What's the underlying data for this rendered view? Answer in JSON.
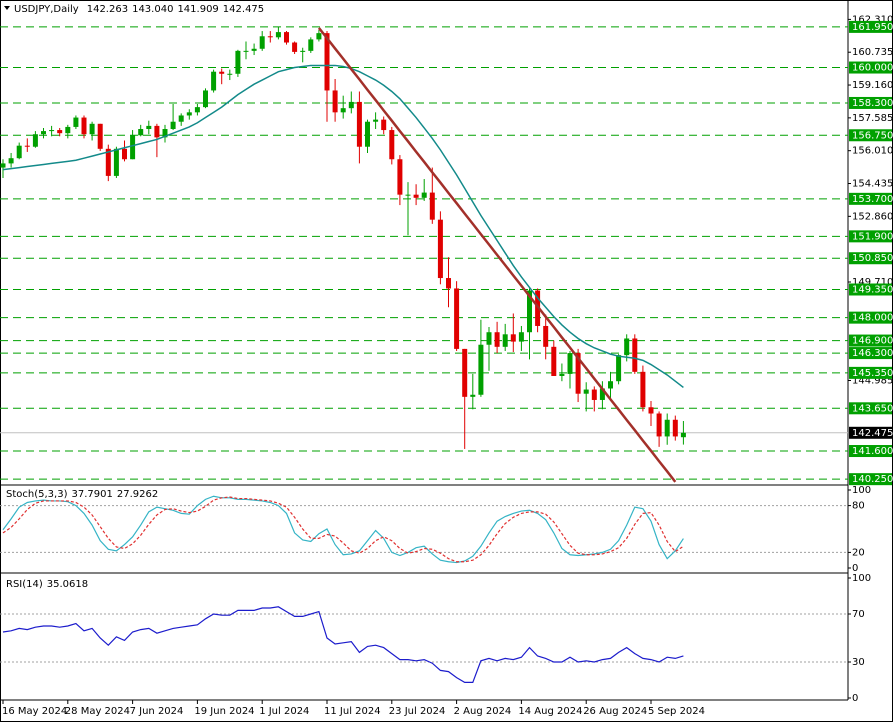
{
  "chart_data": [
    {
      "type": "candlestick",
      "title": "USDJPY,Daily",
      "quote_labels": [
        "142.263",
        "143.040",
        "141.909",
        "142.475"
      ],
      "categories": [
        "16 May 2024",
        null,
        null,
        null,
        null,
        null,
        null,
        null,
        "28 May 2024",
        null,
        null,
        null,
        null,
        null,
        null,
        null,
        "7 Jun 2024",
        null,
        null,
        null,
        null,
        null,
        null,
        null,
        "19 Jun 2024",
        null,
        null,
        null,
        null,
        null,
        null,
        null,
        "1 Jul 2024",
        null,
        null,
        null,
        null,
        null,
        null,
        null,
        "11 Jul 2024",
        null,
        null,
        null,
        null,
        null,
        null,
        null,
        "23 Jul 2024",
        null,
        null,
        null,
        null,
        null,
        null,
        null,
        "2 Aug 2024",
        null,
        null,
        null,
        null,
        null,
        null,
        null,
        "14 Aug 2024",
        null,
        null,
        null,
        null,
        null,
        null,
        null,
        "26 Aug 2024",
        null,
        null,
        null,
        null,
        null,
        null,
        null,
        "5 Sep 2024",
        null,
        null,
        null,
        null
      ],
      "open": [
        155.2,
        155.4,
        155.65,
        156.25,
        156.2,
        156.8,
        156.95,
        157.0,
        156.85,
        157.15,
        157.6,
        156.8,
        157.3,
        156.1,
        154.8,
        156.1,
        155.6,
        156.75,
        157.05,
        157.2,
        156.65,
        157.05,
        157.4,
        157.7,
        157.85,
        158.1,
        158.9,
        159.8,
        159.7,
        159.7,
        160.8,
        160.8,
        160.9,
        161.5,
        161.45,
        161.7,
        161.2,
        160.75,
        160.8,
        161.35,
        161.65,
        158.9,
        157.85,
        158.05,
        158.35,
        156.2,
        157.4,
        157.5,
        157.0,
        155.6,
        153.9,
        153.9,
        153.75,
        154.0,
        152.7,
        149.9,
        149.4,
        146.5,
        144.2,
        144.3,
        146.7,
        147.3,
        146.6,
        147.2,
        146.85,
        147.3,
        149.3,
        147.6,
        146.6,
        145.2,
        145.3,
        146.3,
        144.35,
        144.55,
        144.05,
        144.6,
        144.95,
        146.2,
        147.0,
        145.4,
        143.7,
        143.4,
        142.3,
        143.1,
        142.263
      ],
      "high": [
        155.6,
        155.9,
        156.4,
        156.6,
        156.95,
        157.1,
        157.2,
        157.1,
        157.25,
        157.7,
        157.7,
        157.4,
        157.3,
        156.3,
        156.2,
        156.5,
        157.0,
        157.25,
        157.45,
        157.3,
        157.25,
        158.25,
        157.8,
        158.0,
        158.25,
        159.0,
        159.9,
        159.95,
        159.9,
        160.85,
        161.25,
        161.15,
        161.75,
        161.75,
        161.95,
        161.75,
        161.25,
        160.95,
        161.45,
        161.8,
        161.75,
        159.45,
        158.65,
        158.85,
        158.85,
        157.5,
        157.85,
        157.65,
        157.15,
        155.8,
        154.5,
        154.4,
        154.65,
        155.2,
        153.1,
        150.9,
        149.75,
        146.5,
        145.3,
        147.9,
        147.55,
        147.8,
        147.7,
        148.2,
        147.6,
        149.4,
        149.4,
        148.15,
        146.9,
        145.8,
        146.4,
        146.5,
        144.9,
        144.7,
        144.95,
        145.4,
        146.25,
        147.2,
        147.2,
        145.7,
        144.0,
        143.5,
        143.4,
        143.3,
        143.04
      ],
      "low": [
        154.7,
        155.2,
        155.6,
        155.95,
        156.15,
        156.6,
        156.7,
        156.7,
        156.6,
        157.05,
        156.6,
        156.5,
        156.0,
        154.55,
        154.7,
        155.5,
        155.6,
        156.7,
        156.8,
        155.7,
        156.4,
        157.0,
        157.2,
        157.5,
        157.7,
        158.05,
        158.8,
        159.2,
        159.4,
        159.55,
        160.4,
        160.6,
        160.8,
        161.2,
        161.35,
        161.1,
        160.65,
        160.25,
        160.7,
        161.25,
        157.4,
        157.4,
        157.55,
        157.8,
        155.4,
        155.9,
        157.05,
        156.8,
        155.35,
        153.4,
        151.95,
        153.4,
        153.6,
        152.5,
        149.6,
        148.5,
        146.4,
        141.7,
        143.6,
        144.2,
        145.45,
        146.3,
        146.4,
        146.35,
        146.4,
        146.0,
        147.3,
        146.0,
        145.2,
        144.95,
        144.6,
        143.95,
        143.5,
        143.5,
        143.6,
        144.1,
        144.8,
        145.9,
        145.3,
        143.5,
        142.8,
        141.8,
        141.9,
        142.1,
        141.909
      ],
      "close": [
        155.4,
        155.65,
        156.25,
        156.2,
        156.8,
        156.95,
        157.0,
        156.85,
        157.15,
        157.6,
        156.8,
        157.3,
        156.1,
        154.8,
        156.1,
        155.6,
        156.75,
        157.05,
        157.2,
        156.65,
        157.05,
        157.4,
        157.7,
        157.85,
        158.1,
        158.9,
        159.8,
        159.7,
        159.7,
        160.8,
        160.8,
        160.9,
        161.5,
        161.45,
        161.7,
        161.2,
        160.75,
        160.8,
        161.35,
        161.65,
        158.9,
        157.85,
        158.05,
        158.35,
        156.2,
        157.4,
        157.5,
        157.0,
        155.6,
        153.9,
        153.9,
        153.75,
        154.0,
        152.7,
        149.9,
        149.4,
        146.5,
        144.2,
        144.3,
        146.7,
        147.3,
        146.6,
        147.2,
        146.85,
        147.3,
        149.3,
        147.6,
        146.6,
        145.2,
        145.3,
        146.3,
        144.35,
        144.55,
        144.05,
        144.6,
        144.95,
        146.2,
        147.0,
        145.4,
        143.7,
        143.4,
        142.3,
        143.1,
        142.3,
        142.475
      ],
      "up_color": "#00a000",
      "down_color": "#e00000",
      "ma": {
        "color": "#138a8a",
        "values": [
          155.1,
          155.15,
          155.2,
          155.25,
          155.3,
          155.35,
          155.4,
          155.45,
          155.5,
          155.55,
          155.65,
          155.75,
          155.85,
          155.95,
          156.05,
          156.15,
          156.25,
          156.35,
          156.45,
          156.55,
          156.7,
          156.85,
          157.0,
          157.15,
          157.35,
          157.6,
          157.85,
          158.1,
          158.4,
          158.7,
          158.95,
          159.2,
          159.4,
          159.6,
          159.8,
          159.9,
          160.0,
          160.05,
          160.1,
          160.1,
          160.1,
          160.1,
          160.05,
          159.95,
          159.8,
          159.6,
          159.4,
          159.15,
          158.85,
          158.5,
          158.05,
          157.6,
          157.1,
          156.6,
          156.05,
          155.45,
          154.85,
          154.2,
          153.55,
          152.9,
          152.3,
          151.7,
          151.1,
          150.5,
          149.95,
          149.45,
          148.95,
          148.5,
          148.05,
          147.65,
          147.3,
          147.0,
          146.75,
          146.55,
          146.4,
          146.25,
          146.15,
          146.1,
          146.05,
          145.95,
          145.75,
          145.5,
          145.25,
          144.95,
          144.65
        ]
      },
      "trendline": {
        "color": "#a3302a",
        "values": [
          null,
          null,
          null,
          null,
          null,
          null,
          null,
          null,
          null,
          null,
          null,
          null,
          null,
          null,
          null,
          null,
          null,
          null,
          null,
          null,
          null,
          null,
          null,
          null,
          null,
          null,
          null,
          null,
          null,
          null,
          null,
          null,
          null,
          null,
          null,
          null,
          null,
          null,
          null,
          161.9,
          161.41,
          160.91,
          160.42,
          159.92,
          159.43,
          158.93,
          158.44,
          157.94,
          157.45,
          156.95,
          156.46,
          155.96,
          155.47,
          154.97,
          154.48,
          153.98,
          153.49,
          152.99,
          152.5,
          152.0,
          151.51,
          151.01,
          150.52,
          150.02,
          149.53,
          149.03,
          148.54,
          148.04,
          147.55,
          147.05,
          146.56,
          146.06,
          145.57,
          145.07,
          144.58,
          144.08,
          143.59,
          143.09,
          142.6,
          142.1,
          141.61,
          141.11,
          140.62,
          140.12,
          null
        ]
      },
      "levels": [
        {
          "value": 161.95,
          "label": "161.950"
        },
        {
          "value": 160.0,
          "label": "160.000"
        },
        {
          "value": 158.3,
          "label": "158.300"
        },
        {
          "value": 156.75,
          "label": "156.750"
        },
        {
          "value": 153.7,
          "label": "153.700"
        },
        {
          "value": 151.9,
          "label": "151.900"
        },
        {
          "value": 150.85,
          "label": "150.850"
        },
        {
          "value": 149.35,
          "label": "149.350"
        },
        {
          "value": 148.0,
          "label": "148.000"
        },
        {
          "value": 146.9,
          "label": "146.900"
        },
        {
          "value": 146.3,
          "label": "146.300"
        },
        {
          "value": 145.35,
          "label": "145.350"
        },
        {
          "value": 143.65,
          "label": "143.650"
        },
        {
          "value": 141.6,
          "label": "141.600"
        },
        {
          "value": 140.25,
          "label": "140.250"
        }
      ],
      "level_color": "#00a000",
      "ylim": [
        139.97,
        163.24
      ],
      "yticks": [
        {
          "value": 162.31,
          "label": "162.310"
        },
        160.735,
        {
          "value": 159.16,
          "label": "159.160"
        },
        157.585,
        {
          "value": 156.01,
          "label": "156.010"
        },
        154.435,
        {
          "value": 152.86,
          "label": "152.860"
        },
        {
          "value": 149.71,
          "label": "149.710"
        },
        144.985
      ]
    },
    {
      "type": "stochastic",
      "title": "Stoch(5,3,3)",
      "series": [
        {
          "color": "#35b4c6",
          "dash": false,
          "values": [
            49,
            63,
            78,
            84,
            86,
            87,
            86,
            86,
            85,
            80,
            70,
            55,
            35,
            24,
            22,
            30,
            40,
            55,
            72,
            78,
            76,
            74,
            70,
            69,
            80,
            88,
            92,
            90,
            90,
            88,
            88,
            87,
            86,
            84,
            80,
            70,
            45,
            36,
            34,
            44,
            50,
            30,
            17,
            18,
            22,
            35,
            48,
            38,
            20,
            16,
            20,
            26,
            28,
            18,
            10,
            8,
            7,
            9,
            15,
            28,
            45,
            60,
            66,
            70,
            73,
            74,
            70,
            62,
            45,
            25,
            17,
            16,
            17,
            18,
            20,
            24,
            35,
            55,
            78,
            76,
            60,
            30,
            12,
            22,
            37.7901
          ]
        },
        {
          "color": "#e03030",
          "dash": true,
          "values": [
            45,
            52,
            63,
            75,
            83,
            86,
            86,
            86,
            86,
            84,
            78,
            68,
            53,
            38,
            27,
            25,
            31,
            42,
            56,
            68,
            75,
            76,
            73,
            71,
            73,
            79,
            87,
            90,
            91,
            89,
            89,
            88,
            87,
            86,
            83,
            78,
            65,
            50,
            38,
            38,
            43,
            41,
            32,
            22,
            19,
            25,
            35,
            40,
            35,
            25,
            19,
            21,
            25,
            24,
            19,
            12,
            8,
            8,
            10,
            17,
            29,
            44,
            57,
            65,
            70,
            72,
            72,
            69,
            59,
            44,
            29,
            19,
            17,
            17,
            18,
            21,
            26,
            38,
            56,
            70,
            71,
            55,
            34,
            21,
            27.9262
          ]
        }
      ],
      "ylim": [
        0,
        100
      ],
      "yticks": [
        0,
        20,
        80,
        100
      ],
      "grid": true
    },
    {
      "type": "rsi",
      "title": "RSI(14)",
      "series": [
        {
          "color": "#1c1ccc",
          "dash": false,
          "values": [
            55,
            56,
            58,
            57,
            59,
            60,
            60,
            59,
            60,
            62,
            56,
            58,
            50,
            44,
            51,
            48,
            55,
            57,
            58,
            54,
            56,
            58,
            59,
            60,
            61,
            66,
            70,
            69,
            69,
            73,
            73,
            73,
            75,
            75,
            76,
            72,
            68,
            68,
            70,
            72,
            50,
            45,
            46,
            47,
            38,
            43,
            44,
            42,
            37,
            32,
            32,
            31,
            32,
            29,
            23,
            22,
            17,
            13,
            13,
            31,
            33,
            31,
            33,
            32,
            34,
            42,
            35,
            33,
            30,
            30,
            34,
            30,
            31,
            30,
            32,
            33,
            38,
            42,
            37,
            33,
            32,
            30,
            34,
            33,
            35.0618
          ]
        }
      ],
      "ylim": [
        0,
        100
      ],
      "yticks": [
        0,
        30,
        70,
        100
      ],
      "grid": true
    }
  ]
}
